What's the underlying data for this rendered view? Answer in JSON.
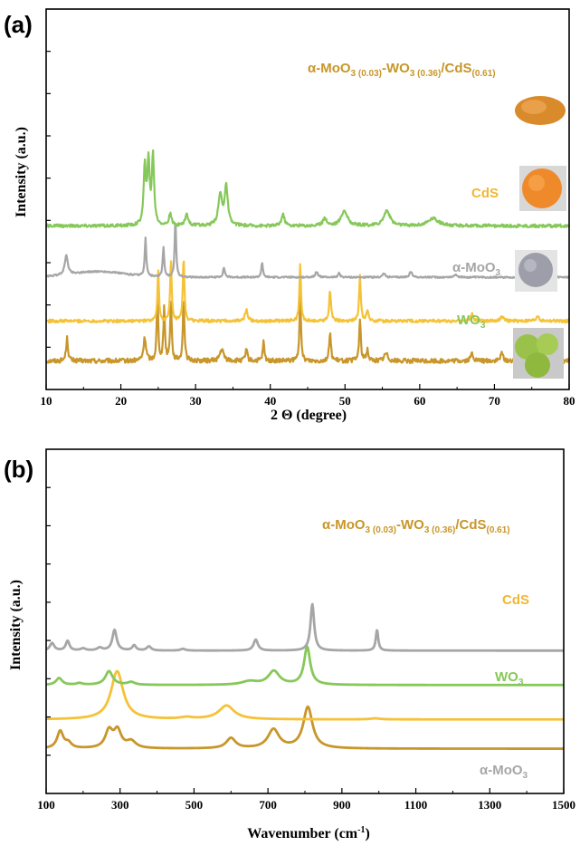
{
  "colors": {
    "composite": "#C8962A",
    "cds": "#F5C237",
    "moo3": "#A6A6A6",
    "wo3": "#86C85A",
    "cds_label": "#F2B632"
  },
  "chart_data": [
    {
      "panel": "(a)",
      "type": "line",
      "xlabel": "2 Θ (degree)",
      "ylabel": "Intensity (a.u.)",
      "xlim": [
        10,
        80
      ],
      "x_ticks": [
        10,
        20,
        30,
        40,
        50,
        60,
        70,
        80
      ],
      "grid": false,
      "series": [
        {
          "name": "α-MoO3 (0.03)-WO3 (0.36)/CdS(0.61)",
          "color_key": "composite",
          "baseline": 0.075,
          "noise": 0.006,
          "peaks": [
            [
              12.8,
              0.06,
              0.15
            ],
            [
              23.2,
              0.06,
              0.2
            ],
            [
              24.9,
              0.17,
              0.12
            ],
            [
              25.8,
              0.14,
              0.12
            ],
            [
              26.7,
              0.16,
              0.12
            ],
            [
              28.4,
              0.17,
              0.12
            ],
            [
              33.5,
              0.03,
              0.3
            ],
            [
              36.8,
              0.03,
              0.15
            ],
            [
              39.1,
              0.05,
              0.12
            ],
            [
              44.0,
              0.17,
              0.12
            ],
            [
              48.0,
              0.07,
              0.15
            ],
            [
              52.0,
              0.11,
              0.13
            ],
            [
              53.0,
              0.03,
              0.15
            ],
            [
              55.5,
              0.02,
              0.3
            ],
            [
              67.0,
              0.02,
              0.2
            ],
            [
              71.0,
              0.02,
              0.2
            ],
            [
              75.8,
              0.02,
              0.2
            ]
          ]
        },
        {
          "name": "CdS",
          "color_key": "cds",
          "baseline": 0.18,
          "noise": 0.004,
          "peaks": [
            [
              25.0,
              0.13,
              0.12
            ],
            [
              26.7,
              0.16,
              0.12
            ],
            [
              28.4,
              0.17,
              0.12
            ],
            [
              36.8,
              0.03,
              0.2
            ],
            [
              44.0,
              0.15,
              0.12
            ],
            [
              48.0,
              0.08,
              0.15
            ],
            [
              52.0,
              0.12,
              0.13
            ],
            [
              53.0,
              0.03,
              0.15
            ],
            [
              67.0,
              0.02,
              0.2
            ],
            [
              71.0,
              0.015,
              0.2
            ],
            [
              75.8,
              0.015,
              0.2
            ]
          ]
        },
        {
          "name": "α-MoO3",
          "color_key": "moo3",
          "baseline": 0.295,
          "noise": 0.002,
          "peaks": [
            [
              12.7,
              0.05,
              0.25
            ],
            [
              23.3,
              0.1,
              0.12
            ],
            [
              25.7,
              0.08,
              0.12
            ],
            [
              27.3,
              0.15,
              0.12
            ],
            [
              33.8,
              0.025,
              0.15
            ],
            [
              38.9,
              0.04,
              0.12
            ],
            [
              46.2,
              0.015,
              0.2
            ],
            [
              49.2,
              0.012,
              0.15
            ],
            [
              55.2,
              0.01,
              0.2
            ],
            [
              58.8,
              0.015,
              0.2
            ],
            [
              64.8,
              0.008,
              0.2
            ]
          ]
        },
        {
          "name": "WO3",
          "color_key": "wo3",
          "baseline": 0.43,
          "noise": 0.004,
          "peaks": [
            [
              23.2,
              0.15,
              0.18
            ],
            [
              23.7,
              0.16,
              0.18
            ],
            [
              24.3,
              0.18,
              0.18
            ],
            [
              26.6,
              0.03,
              0.2
            ],
            [
              28.8,
              0.03,
              0.25
            ],
            [
              33.3,
              0.08,
              0.3
            ],
            [
              34.1,
              0.1,
              0.25
            ],
            [
              41.7,
              0.03,
              0.25
            ],
            [
              47.3,
              0.02,
              0.3
            ],
            [
              49.9,
              0.04,
              0.5
            ],
            [
              55.6,
              0.04,
              0.5
            ],
            [
              61.8,
              0.02,
              0.8
            ]
          ]
        }
      ]
    },
    {
      "panel": "(b)",
      "type": "line",
      "xlabel": "Wavenumber (cm-1)",
      "ylabel": "Intensity (a.u.)",
      "xlim": [
        100,
        1500
      ],
      "x_ticks": [
        100,
        300,
        500,
        700,
        900,
        1100,
        1300,
        1500
      ],
      "grid": false,
      "series": [
        {
          "name": "α-MoO3 (0.03)-WO3 (0.36)/CdS(0.61)",
          "color_key": "composite",
          "baseline": 0.13,
          "noise": 0,
          "peaks": [
            [
              138,
              0.05,
              10
            ],
            [
              160,
              0.015,
              10
            ],
            [
              270,
              0.05,
              12
            ],
            [
              293,
              0.05,
              12
            ],
            [
              330,
              0.02,
              15
            ],
            [
              600,
              0.03,
              15
            ],
            [
              715,
              0.055,
              18
            ],
            [
              808,
              0.12,
              15
            ]
          ]
        },
        {
          "name": "CdS",
          "color_key": "cds",
          "baseline": 0.215,
          "noise": 0,
          "peaks": [
            [
              292,
              0.14,
              20
            ],
            [
              480,
              0.005,
              20
            ],
            [
              588,
              0.04,
              25
            ],
            [
              990,
              0.003,
              15
            ]
          ]
        },
        {
          "name": "WO3",
          "color_key": "wo3",
          "baseline": 0.315,
          "noise": 0,
          "peaks": [
            [
              135,
              0.02,
              10
            ],
            [
              190,
              0.005,
              10
            ],
            [
              270,
              0.04,
              12
            ],
            [
              330,
              0.008,
              12
            ],
            [
              650,
              0.01,
              25
            ],
            [
              716,
              0.04,
              18
            ],
            [
              806,
              0.11,
              10
            ]
          ]
        },
        {
          "name": "α-MoO3",
          "color_key": "moo3",
          "baseline": 0.415,
          "noise": 0,
          "peaks": [
            [
              116,
              0.022,
              7
            ],
            [
              158,
              0.028,
              6
            ],
            [
              200,
              0.006,
              8
            ],
            [
              245,
              0.008,
              8
            ],
            [
              285,
              0.06,
              7
            ],
            [
              338,
              0.015,
              6
            ],
            [
              378,
              0.012,
              7
            ],
            [
              470,
              0.005,
              8
            ],
            [
              667,
              0.032,
              7
            ],
            [
              820,
              0.135,
              6
            ],
            [
              995,
              0.06,
              4
            ]
          ]
        }
      ]
    }
  ]
}
